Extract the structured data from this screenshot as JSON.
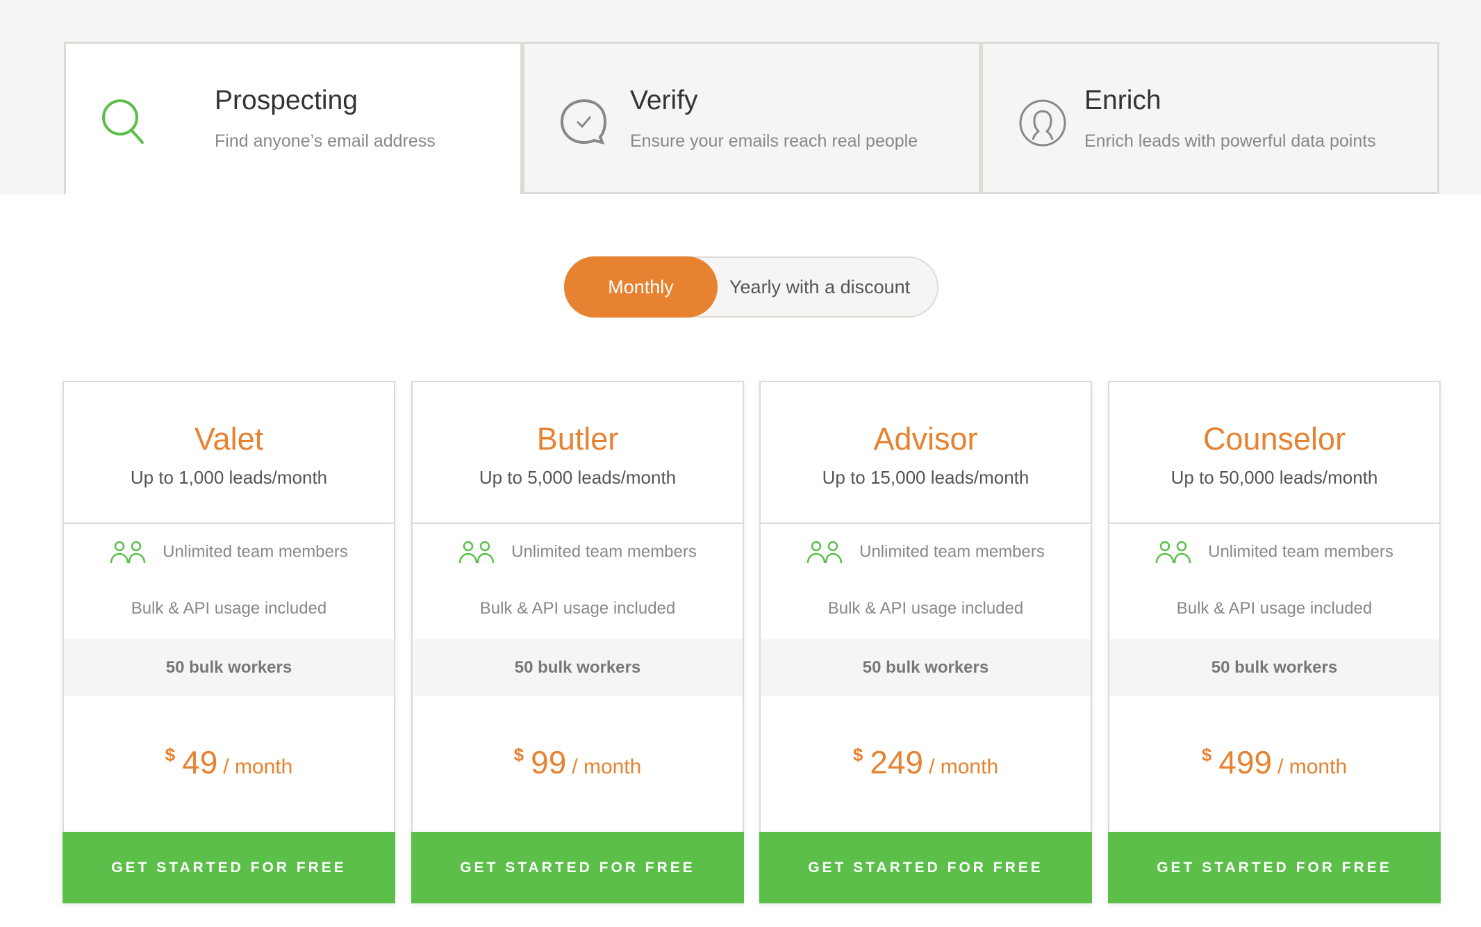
{
  "tabs": [
    {
      "title": "Prospecting",
      "subtitle": "Find anyone’s email address",
      "icon": "search-icon",
      "active": true
    },
    {
      "title": "Verify",
      "subtitle": "Ensure your emails reach real people",
      "icon": "check-bubble-icon",
      "active": false
    },
    {
      "title": "Enrich",
      "subtitle": "Enrich leads with powerful data points",
      "icon": "user-circle-icon",
      "active": false
    }
  ],
  "billing_toggle": {
    "monthly": "Monthly",
    "yearly": "Yearly with a discount",
    "selected": "Monthly"
  },
  "plans": [
    {
      "name": "Valet",
      "leads": "Up to 1,000 leads/month",
      "team": "Unlimited team members",
      "api": "Bulk & API usage included",
      "workers": "50 bulk workers",
      "currency": "$",
      "price": "49",
      "period": "/ month",
      "cta": "GET STARTED FOR FREE"
    },
    {
      "name": "Butler",
      "leads": "Up to 5,000 leads/month",
      "team": "Unlimited team members",
      "api": "Bulk & API usage included",
      "workers": "50 bulk workers",
      "currency": "$",
      "price": "99",
      "period": "/ month",
      "cta": "GET STARTED FOR FREE"
    },
    {
      "name": "Advisor",
      "leads": "Up to 15,000 leads/month",
      "team": "Unlimited team members",
      "api": "Bulk & API usage included",
      "workers": "50 bulk workers",
      "currency": "$",
      "price": "249",
      "period": "/ month",
      "cta": "GET STARTED FOR FREE"
    },
    {
      "name": "Counselor",
      "leads": "Up to 50,000 leads/month",
      "team": "Unlimited team members",
      "api": "Bulk & API usage included",
      "workers": "50 bulk workers",
      "currency": "$",
      "price": "499",
      "period": "/ month",
      "cta": "GET STARTED FOR FREE"
    }
  ],
  "colors": {
    "accent": "#e68230",
    "cta": "#5cbf4a",
    "band": "#f6f5f3"
  }
}
